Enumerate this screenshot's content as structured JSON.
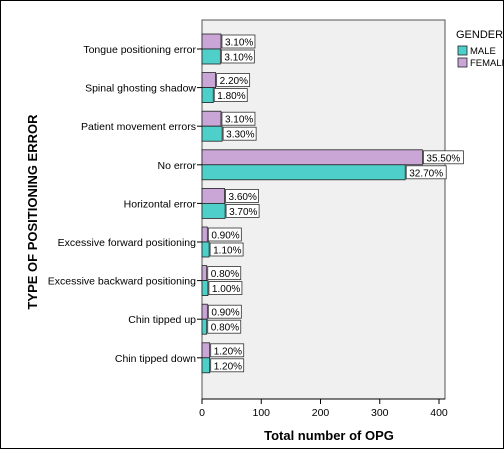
{
  "chart_data": {
    "type": "bar",
    "orientation": "horizontal",
    "title": "",
    "ylabel": "TYPE OF POSITIONING ERROR",
    "xlabel": "Total number of OPG",
    "xlim": [
      0,
      400
    ],
    "xticks": [
      0,
      100,
      200,
      300,
      400
    ],
    "grid": false,
    "legend": {
      "title": "GENDER",
      "placement": "top-right"
    },
    "categories": [
      "Tongue positioning error",
      "Spinal ghosting shadow",
      "Patient movement errors",
      "No error",
      "Horizontal error",
      "Excessive forward positioning",
      "Excessive backward positioning",
      "Chin tipped up",
      "Chin tipped down"
    ],
    "series": [
      {
        "name": "MALE",
        "color": "#4fcfca",
        "values": [
          31,
          19,
          34,
          343,
          39,
          12,
          10,
          8,
          13
        ],
        "labels": [
          "3.10%",
          "1.80%",
          "3.30%",
          "32.70%",
          "3.70%",
          "1.10%",
          "1.00%",
          "0.80%",
          "1.20%"
        ]
      },
      {
        "name": "FEMALE",
        "color": "#c9a6d6",
        "values": [
          32,
          23,
          32,
          372,
          38,
          9,
          8,
          9,
          13
        ],
        "labels": [
          "3.10%",
          "2.20%",
          "3.10%",
          "35.50%",
          "3.60%",
          "0.90%",
          "0.80%",
          "0.90%",
          "1.20%"
        ]
      }
    ]
  }
}
